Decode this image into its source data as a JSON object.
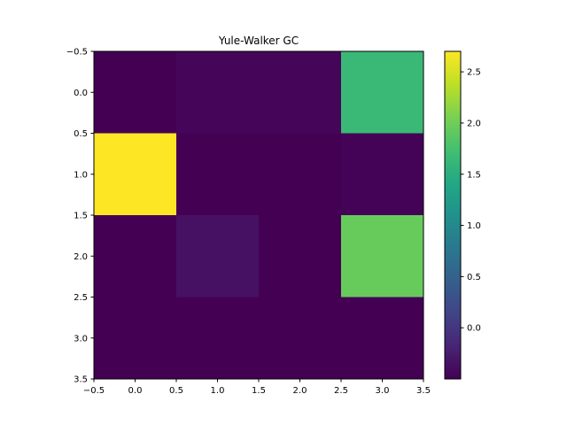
{
  "chart_data": {
    "type": "heatmap",
    "title": "Yule-Walker GC",
    "xlabel": "",
    "ylabel": "",
    "xlim": [
      -0.5,
      3.5
    ],
    "ylim": [
      3.5,
      -0.5
    ],
    "x_ticks": [
      -0.5,
      0.0,
      0.5,
      1.0,
      1.5,
      2.0,
      2.5,
      3.0,
      3.5
    ],
    "x_tick_labels": [
      "−0.5",
      "0.0",
      "0.5",
      "1.0",
      "1.5",
      "2.0",
      "2.5",
      "3.0",
      "3.5"
    ],
    "y_ticks": [
      -0.5,
      0.0,
      0.5,
      1.0,
      1.5,
      2.0,
      2.5,
      3.0,
      3.5
    ],
    "y_tick_labels": [
      "−0.5",
      "0.0",
      "0.5",
      "1.0",
      "1.5",
      "2.0",
      "2.5",
      "3.0",
      "3.5"
    ],
    "matrix": [
      [
        -0.5,
        -0.45,
        -0.45,
        1.65
      ],
      [
        2.7,
        -0.5,
        -0.5,
        -0.48
      ],
      [
        -0.5,
        -0.35,
        -0.5,
        1.95
      ],
      [
        -0.5,
        -0.5,
        -0.5,
        -0.5
      ]
    ],
    "colorbar": {
      "min": -0.5,
      "max": 2.7,
      "ticks": [
        0.0,
        0.5,
        1.0,
        1.5,
        2.0,
        2.5
      ],
      "tick_labels": [
        "0.0",
        "0.5",
        "1.0",
        "1.5",
        "2.0",
        "2.5"
      ],
      "colormap": "viridis"
    },
    "grid": false
  }
}
